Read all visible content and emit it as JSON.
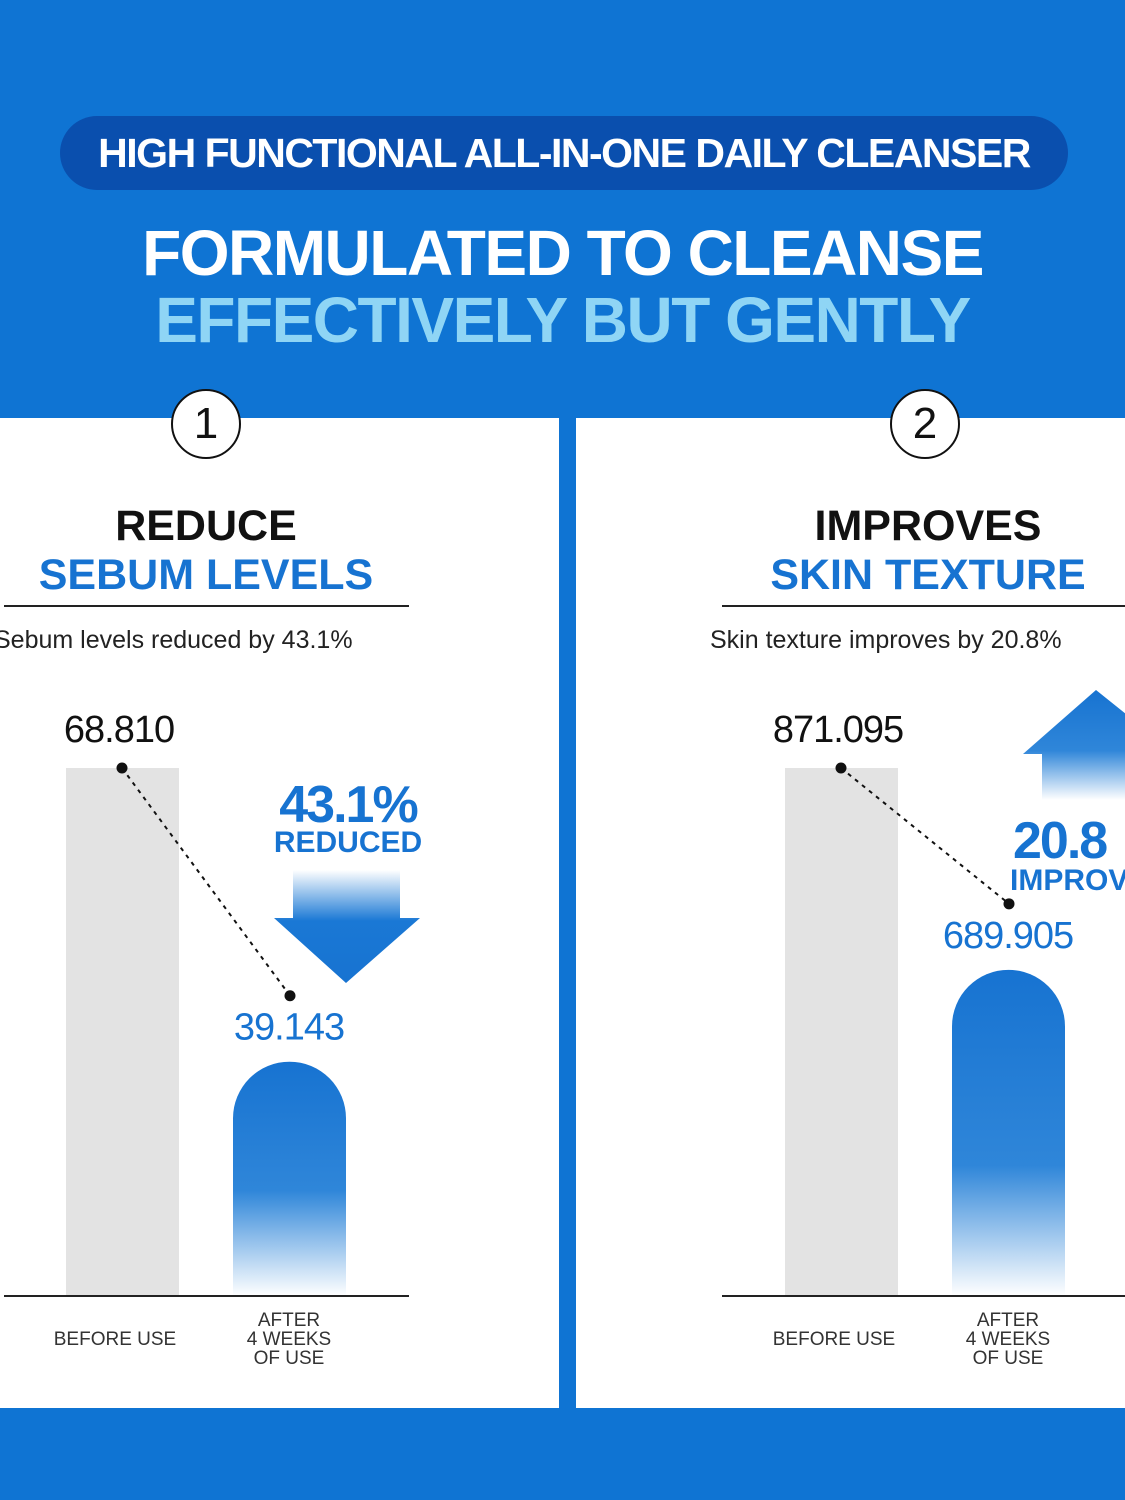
{
  "header": {
    "pill": "HIGH FUNCTIONAL ALL-IN-ONE DAILY CLEANSER",
    "headline_line1": "FORMULATED TO CLEANSE",
    "headline_line2": "EFFECTIVELY BUT GENTLY"
  },
  "colors": {
    "background_blue": "#0f74d3",
    "pill_blue": "#0a4fae",
    "headline_light_blue": "#8fd5f5",
    "accent_blue": "#1773d1",
    "before_bar_gray": "#e3e3e3"
  },
  "panels": [
    {
      "number": "1",
      "title_line1": "REDUCE",
      "title_line2": "SEBUM LEVELS",
      "subtitle": "Sebum levels reduced by 43.1%",
      "badge_value": "43.1%",
      "badge_label": "REDUCED",
      "badge_arrow_icon": "arrow-down-icon",
      "before_value_label": "68.810",
      "after_value_label": "39.143",
      "x_label_before": "BEFORE USE",
      "x_label_after": "AFTER\n4 WEEKS\nOF USE"
    },
    {
      "number": "2",
      "title_line1": "IMPROVES",
      "title_line2": "SKIN TEXTURE",
      "subtitle": "Skin texture improves by 20.8%",
      "badge_value": "20.8",
      "badge_label": "IMPROV",
      "badge_arrow_icon": "arrow-up-icon",
      "before_value_label": "871.095",
      "after_value_label": "689.905",
      "x_label_before": "BEFORE USE",
      "x_label_after": "AFTER\n4 WEEKS\nOF USE"
    }
  ],
  "chart_data": [
    {
      "type": "bar",
      "title": "REDUCE SEBUM LEVELS",
      "subtitle": "Sebum levels reduced by 43.1%",
      "categories": [
        "BEFORE USE",
        "AFTER 4 WEEKS OF USE"
      ],
      "values": [
        68.81,
        39.143
      ],
      "change_percent": 43.1,
      "change_label": "REDUCED",
      "grid": false,
      "legend": "none"
    },
    {
      "type": "bar",
      "title": "IMPROVES SKIN TEXTURE",
      "subtitle": "Skin texture improves by 20.8%",
      "categories": [
        "BEFORE USE",
        "AFTER 4 WEEKS OF USE"
      ],
      "values": [
        871.095,
        689.905
      ],
      "change_percent": 20.8,
      "change_label": "IMPROV",
      "grid": false,
      "legend": "none"
    }
  ]
}
